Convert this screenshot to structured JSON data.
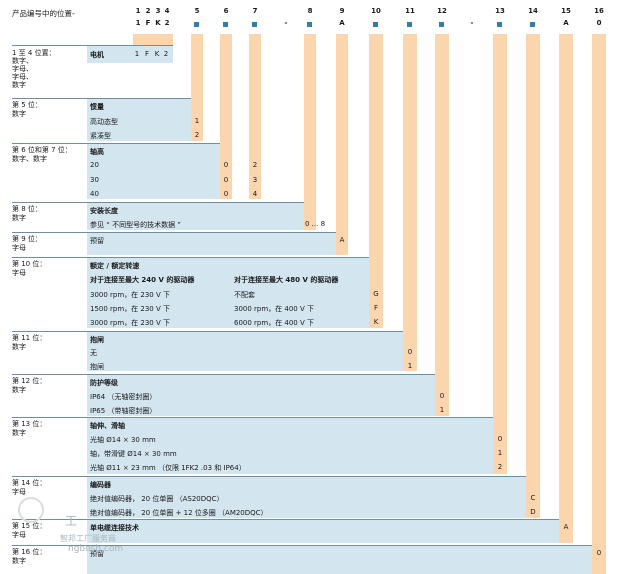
{
  "header": {
    "title": "产品编号中的位置-",
    "positions": [
      "1",
      "2",
      "3",
      "4",
      "5",
      "6",
      "7",
      "8",
      "9",
      "10",
      "11",
      "12",
      "13",
      "14",
      "15",
      "16"
    ],
    "codes": {
      "p1": "1",
      "p2": "F",
      "p3": "K",
      "p4": "2",
      "p9": "A",
      "p15": "A",
      "p16": "0",
      "dash1": "-",
      "dash2": "-"
    }
  },
  "sections": {
    "s1": {
      "label": "1 至 4 位置：",
      "sub": "数字、\n字母、\n字母、\n数字",
      "title": "电机",
      "codes": [
        "1",
        "F",
        "K",
        "2"
      ]
    },
    "s5": {
      "label": "第 5 位：",
      "sub": "数字",
      "title": "惯量",
      "rows": [
        {
          "text": "高动态型",
          "code": "1"
        },
        {
          "text": "紧凑型",
          "code": "2"
        }
      ]
    },
    "s67": {
      "label": "第 6 位和第 7 位：",
      "sub": "数字、数字",
      "title": "轴高",
      "rows": [
        {
          "text": "20",
          "c6": "0",
          "c7": "2"
        },
        {
          "text": "30",
          "c6": "0",
          "c7": "3"
        },
        {
          "text": "40",
          "c6": "0",
          "c7": "4"
        }
      ]
    },
    "s8": {
      "label": "第 8 位：",
      "sub": "数字",
      "title": "安装长度",
      "row": "参见 “ 不同型号的技术数据 ”",
      "code": "0 ... 8"
    },
    "s9": {
      "label": "第 9 位：",
      "sub": "字母",
      "row": "预留",
      "code": "A"
    },
    "s10": {
      "label": "第 10 位：",
      "sub": "字母",
      "title": "额定 / 额定转速",
      "h1": "对于连接至最大 240 V 的驱动器",
      "h2": "对于连接至最大 480 V 的驱动器",
      "rows": [
        {
          "a": "3000 rpm，在 230 V 下",
          "b": "不配套",
          "code": "G"
        },
        {
          "a": "1500 rpm，在 230 V 下",
          "b": "3000 rpm，在 400 V 下",
          "code": "F"
        },
        {
          "a": "3000 rpm，在 230 V 下",
          "b": "6000 rpm，在 400 V 下",
          "code": "K"
        }
      ]
    },
    "s11": {
      "label": "第 11 位：",
      "sub": "数字",
      "title": "抱闸",
      "rows": [
        {
          "text": "无",
          "code": "0"
        },
        {
          "text": "抱闸",
          "code": "1"
        }
      ]
    },
    "s12": {
      "label": "第 12 位：",
      "sub": "数字",
      "title": "防护等级",
      "rows": [
        {
          "text": "IP64 （无轴密封圈）",
          "code": "0"
        },
        {
          "text": "IP65 （带轴密封圈）",
          "code": "1"
        }
      ]
    },
    "s13": {
      "label": "第 13 位：",
      "sub": "数字",
      "title": "轴伸、滑轴",
      "rows": [
        {
          "text": "光轴 Ø14 × 30 mm",
          "code": "0"
        },
        {
          "text": "轴，带滑键 Ø14 × 30 mm",
          "code": "1"
        },
        {
          "text": "光轴 Ø11 × 23 mm （仅限 1FK2 .03 和 IP64）",
          "code": "2"
        }
      ]
    },
    "s14": {
      "label": "第 14 位：",
      "sub": "字母",
      "title": "编码器",
      "rows": [
        {
          "text": "绝对值编码器， 20 位单圈 （AS20DQC）",
          "code": "C"
        },
        {
          "text": "绝对值编码器， 20 位单圈 + 12 位多圈 （AM20DQC）",
          "code": "D"
        }
      ]
    },
    "s15": {
      "label": "第 15 位：",
      "sub": "字母",
      "title": "单电缆连接技术",
      "code": "A"
    },
    "s16": {
      "label": "第 16 位：",
      "sub": "数字",
      "row": "预留",
      "code": "0"
    }
  },
  "watermark": {
    "text1": "工",
    "text2": "智邦工厂服务商",
    "text3": "ngbosh.com"
  }
}
